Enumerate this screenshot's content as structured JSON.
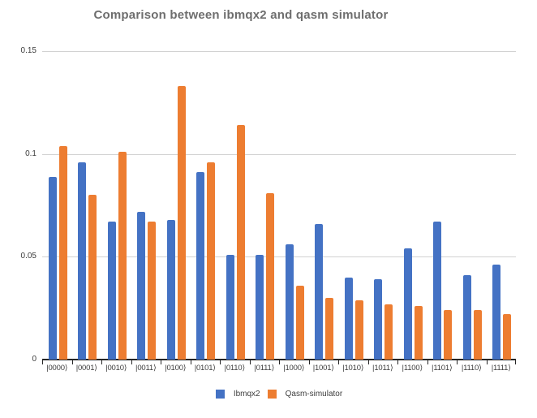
{
  "chart_data": {
    "type": "bar",
    "title": "Comparison between ibmqx2 and qasm simulator",
    "categories": [
      "|0000⟩",
      "|0001⟩",
      "|0010⟩",
      "|0011⟩",
      "|0100⟩",
      "|0101⟩",
      "|0110⟩",
      "|0111⟩",
      "|1000⟩",
      "|1001⟩",
      "|1010⟩",
      "|1011⟩",
      "|1100⟩",
      "|1101⟩",
      "|1110⟩",
      "|1111⟩"
    ],
    "series": [
      {
        "name": "Ibmqx2",
        "color": "#4472C4",
        "values": [
          0.089,
          0.096,
          0.067,
          0.072,
          0.068,
          0.091,
          0.051,
          0.051,
          0.056,
          0.066,
          0.04,
          0.039,
          0.054,
          0.067,
          0.041,
          0.046
        ]
      },
      {
        "name": "Qasm-simulator",
        "color": "#ED7D31",
        "values": [
          0.104,
          0.08,
          0.101,
          0.067,
          0.133,
          0.096,
          0.114,
          0.081,
          0.036,
          0.03,
          0.029,
          0.027,
          0.026,
          0.024,
          0.024,
          0.022
        ]
      }
    ],
    "xlabel": "",
    "ylabel": "",
    "ylim": [
      0,
      0.15
    ],
    "yticks": [
      0,
      0.05,
      0.1,
      0.15
    ],
    "ytick_labels": [
      "0",
      "0.05",
      "0.1",
      "0.15"
    ],
    "grid": true,
    "legend_position": "bottom"
  },
  "colors": {
    "series_blue": "#4472C4",
    "series_orange": "#ED7D31",
    "gridline": "#D2D2D2",
    "axis_line": "#262626",
    "title_text": "#6E6E6E",
    "tick_text": "#3D3D3D",
    "background": "#FFFFFF"
  }
}
